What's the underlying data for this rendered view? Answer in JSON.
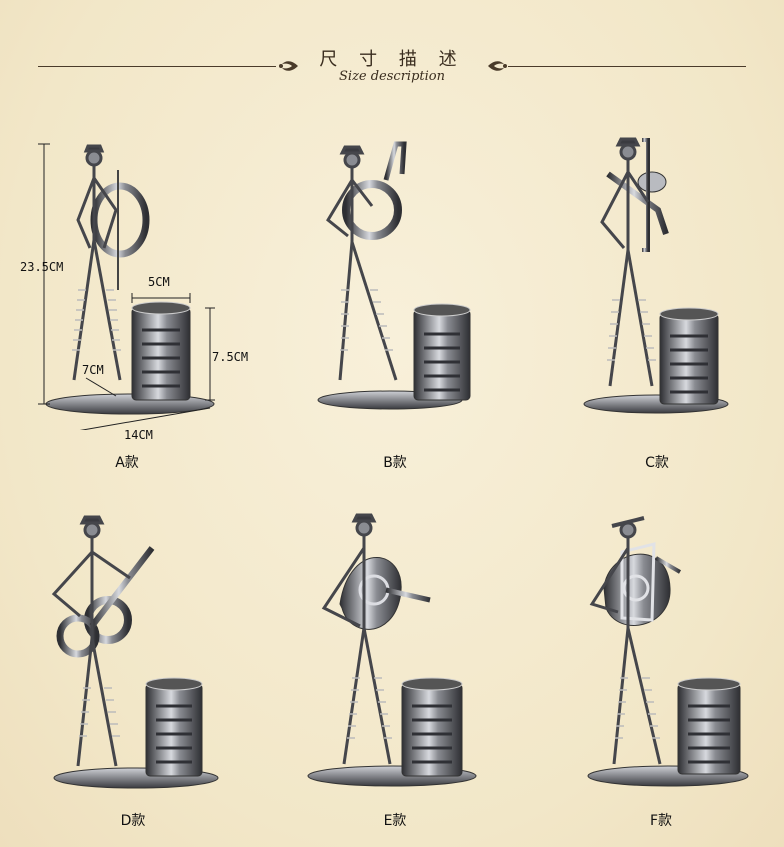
{
  "header": {
    "title_zh": "尺 寸 描 述",
    "title_en": "Size description"
  },
  "dimensions": {
    "height": "23.5CM",
    "cup_width": "5CM",
    "cup_height": "7.5CM",
    "base_depth": "7CM",
    "base_width": "14CM"
  },
  "variants": [
    {
      "label": "A款",
      "instrument": "cello"
    },
    {
      "label": "B款",
      "instrument": "tuba"
    },
    {
      "label": "C款",
      "instrument": "trombone"
    },
    {
      "label": "D款",
      "instrument": "guitar"
    },
    {
      "label": "E款",
      "instrument": "french-horn"
    },
    {
      "label": "F款",
      "instrument": "baritone-horn"
    }
  ],
  "colors": {
    "background": "#f3e9cc",
    "metal": "#4b4d52",
    "metal_highlight": "#c9cbd1",
    "text": "#111111"
  }
}
